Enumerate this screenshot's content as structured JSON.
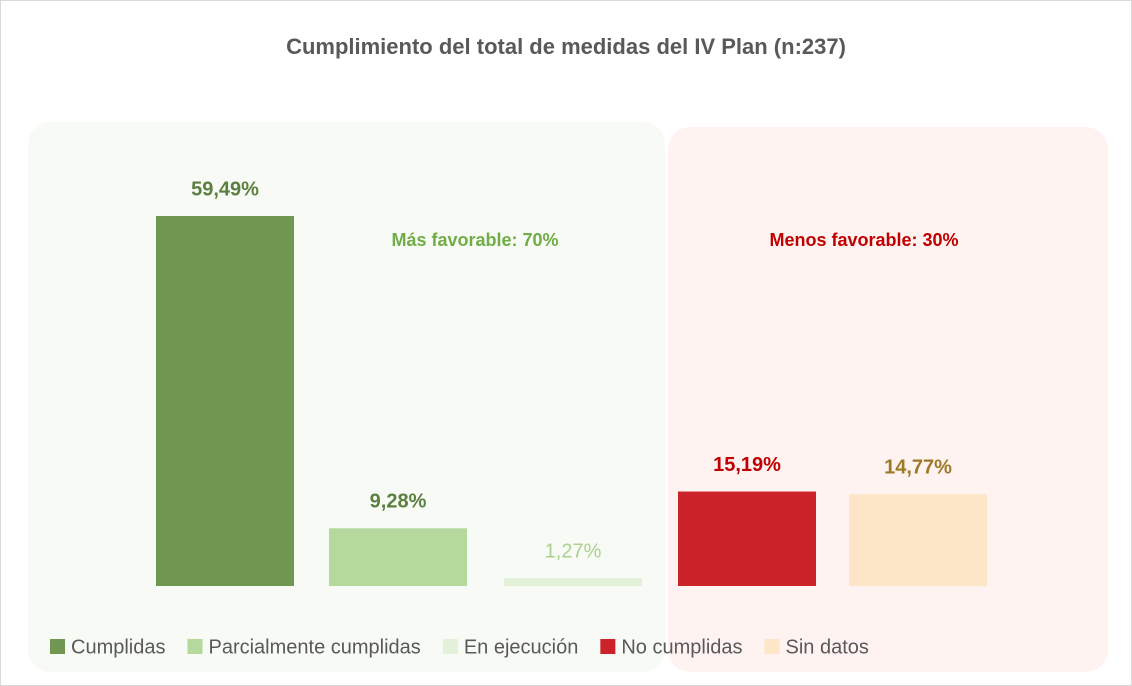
{
  "chart_data": {
    "type": "bar",
    "title": "Cumplimiento del total de medidas del IV Plan (n:237)",
    "series": [
      {
        "name": "Cumplidas",
        "color": "#6f9752",
        "label_color": "#5b7f3f",
        "label_bold": true,
        "values": [
          59.49
        ],
        "value_labels": [
          "59,49%"
        ]
      },
      {
        "name": "Parcialmente cumplidas",
        "color": "#b5d89c",
        "label_color": "#5b7f3f",
        "label_bold": true,
        "values": [
          9.28
        ],
        "value_labels": [
          "9,28%"
        ]
      },
      {
        "name": "En ejecución",
        "color": "#e3f0da",
        "label_color": "#a9d18e",
        "label_bold": false,
        "values": [
          1.27
        ],
        "value_labels": [
          "1,27%"
        ]
      },
      {
        "name": "No cumplidas",
        "color": "#cc2229",
        "label_color": "#c00000",
        "label_bold": true,
        "values": [
          15.19
        ],
        "value_labels": [
          "15,19%"
        ]
      },
      {
        "name": "Sin datos",
        "color": "#fde5c7",
        "label_color": "#9c7a26",
        "label_bold": true,
        "values": [
          14.77
        ],
        "value_labels": [
          "14,77%"
        ]
      }
    ],
    "annotations": [
      {
        "text": "Más favorable: 70%",
        "color": "#70ad47"
      },
      {
        "text": "Menos favorable: 30%",
        "color": "#c00000"
      }
    ],
    "legend": "bottom"
  }
}
